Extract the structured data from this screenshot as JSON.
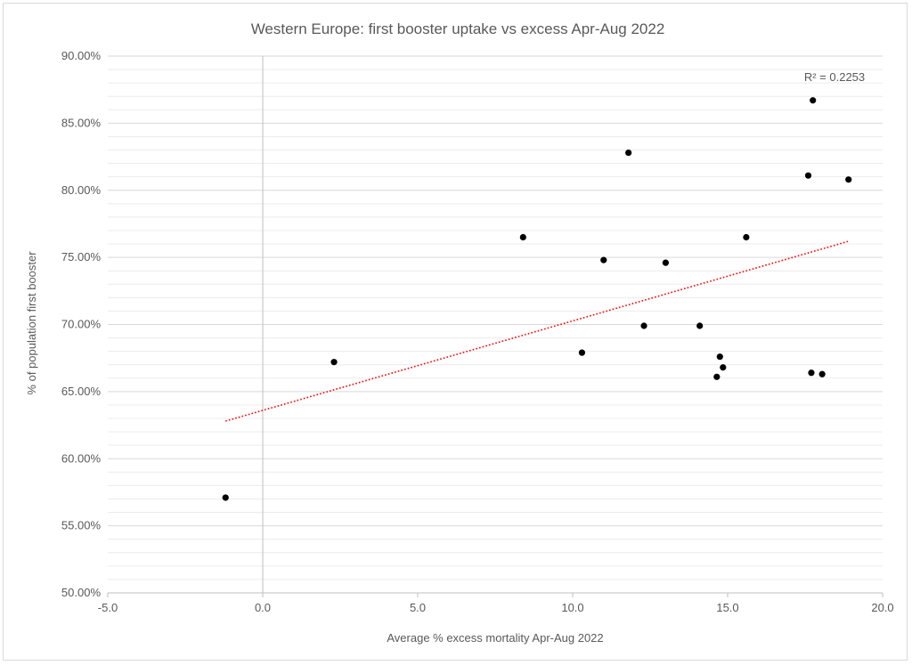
{
  "chart_data": {
    "type": "scatter",
    "title": "Western Europe: first booster uptake vs excess Apr-Aug 2022",
    "xlabel": "Average % excess mortality Apr-Aug 2022",
    "ylabel": "% of population first booster",
    "xlim": [
      -5,
      20
    ],
    "ylim": [
      0.5,
      0.9
    ],
    "x_ticks": [
      -5,
      0,
      5,
      10,
      15,
      20
    ],
    "x_tick_labels": [
      "-5.0",
      "0.0",
      "5.0",
      "10.0",
      "15.0",
      "20.0"
    ],
    "y_ticks": [
      0.5,
      0.55,
      0.6,
      0.65,
      0.7,
      0.75,
      0.8,
      0.85,
      0.9
    ],
    "y_tick_labels": [
      "50.00%",
      "55.00%",
      "60.00%",
      "65.00%",
      "70.00%",
      "75.00%",
      "80.00%",
      "85.00%",
      "90.00%"
    ],
    "minor_grid_step": 0.01,
    "grid": true,
    "legend": "none",
    "points": [
      {
        "x": -1.2,
        "y": 0.571
      },
      {
        "x": 2.3,
        "y": 0.672
      },
      {
        "x": 8.4,
        "y": 0.765
      },
      {
        "x": 10.3,
        "y": 0.679
      },
      {
        "x": 11.0,
        "y": 0.748
      },
      {
        "x": 11.8,
        "y": 0.828
      },
      {
        "x": 12.3,
        "y": 0.699
      },
      {
        "x": 13.0,
        "y": 0.746
      },
      {
        "x": 14.1,
        "y": 0.699
      },
      {
        "x": 14.65,
        "y": 0.661
      },
      {
        "x": 14.75,
        "y": 0.676
      },
      {
        "x": 14.85,
        "y": 0.668
      },
      {
        "x": 15.6,
        "y": 0.765
      },
      {
        "x": 17.6,
        "y": 0.811
      },
      {
        "x": 17.7,
        "y": 0.664
      },
      {
        "x": 17.75,
        "y": 0.867
      },
      {
        "x": 18.05,
        "y": 0.663
      },
      {
        "x": 18.9,
        "y": 0.808
      }
    ],
    "trendline": {
      "type": "linear",
      "x_start": -1.2,
      "y_start": 0.628,
      "x_end": 18.9,
      "y_end": 0.762,
      "color": "#ff0000",
      "style": "dotted",
      "r_squared_label": "R² = 0.2253"
    },
    "colors": {
      "point": "#000000",
      "grid_major": "#d9d9d9",
      "grid_minor": "#ececec",
      "axis": "#bfbfbf",
      "text": "#595959"
    }
  }
}
